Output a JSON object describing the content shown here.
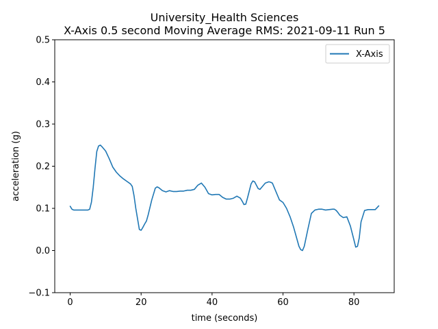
{
  "chart_data": {
    "type": "line",
    "title": "University_Health Sciences",
    "subtitle": "X-Axis 0.5 second Moving Average RMS: 2021-09-11 Run 5",
    "xlabel": "time (seconds)",
    "ylabel": "acceleration (g)",
    "xlim": [
      -4.35,
      91.35
    ],
    "ylim": [
      -0.1,
      0.5
    ],
    "xticks": [
      0,
      20,
      40,
      60,
      80
    ],
    "yticks": [
      -0.1,
      0.0,
      0.1,
      0.2,
      0.3,
      0.4,
      0.5
    ],
    "xtick_labels": [
      "0",
      "20",
      "40",
      "60",
      "80"
    ],
    "ytick_labels": [
      "−0.1",
      "0.0",
      "0.1",
      "0.2",
      "0.3",
      "0.4",
      "0.5"
    ],
    "grid": false,
    "legend": {
      "position": "top-right",
      "entries": [
        "X-Axis"
      ]
    },
    "series": [
      {
        "name": "X-Axis",
        "color": "#1f77b4",
        "x": [
          0,
          0.5,
          1,
          2,
          3,
          4,
          5,
          5.5,
          6,
          6.5,
          7,
          7.5,
          8,
          8.5,
          9,
          10,
          11,
          12,
          13,
          14,
          15,
          16,
          17,
          17.5,
          18,
          18.5,
          19,
          19.5,
          20,
          20.5,
          21,
          21.5,
          22,
          23,
          24,
          24.5,
          25,
          26,
          27,
          28,
          29,
          30,
          31,
          32,
          33,
          34,
          35,
          36,
          37,
          38,
          39,
          40,
          41,
          42,
          43,
          44,
          45,
          46,
          47,
          48,
          48.5,
          49,
          49.5,
          50,
          51,
          51.5,
          52,
          53,
          53.5,
          54,
          55,
          56,
          56.5,
          57,
          58,
          59,
          60,
          61,
          62,
          63,
          64,
          64.5,
          65,
          65.5,
          66,
          67,
          68,
          69,
          70,
          71,
          72,
          73,
          74,
          74.5,
          75,
          75.5,
          76,
          77,
          78,
          79,
          80,
          80.5,
          81,
          81.5,
          82,
          83,
          84,
          85,
          86,
          87
        ],
        "y": [
          0.105,
          0.098,
          0.096,
          0.096,
          0.096,
          0.096,
          0.096,
          0.098,
          0.115,
          0.15,
          0.195,
          0.235,
          0.248,
          0.25,
          0.246,
          0.236,
          0.218,
          0.198,
          0.186,
          0.177,
          0.17,
          0.164,
          0.158,
          0.152,
          0.13,
          0.1,
          0.075,
          0.05,
          0.048,
          0.055,
          0.063,
          0.07,
          0.085,
          0.12,
          0.148,
          0.151,
          0.149,
          0.142,
          0.139,
          0.142,
          0.14,
          0.14,
          0.141,
          0.141,
          0.143,
          0.143,
          0.145,
          0.155,
          0.16,
          0.15,
          0.135,
          0.132,
          0.133,
          0.133,
          0.126,
          0.122,
          0.122,
          0.124,
          0.129,
          0.124,
          0.117,
          0.109,
          0.11,
          0.125,
          0.158,
          0.165,
          0.163,
          0.147,
          0.145,
          0.15,
          0.16,
          0.163,
          0.162,
          0.16,
          0.14,
          0.12,
          0.114,
          0.1,
          0.08,
          0.055,
          0.025,
          0.01,
          0.002,
          0.0,
          0.01,
          0.05,
          0.088,
          0.096,
          0.098,
          0.098,
          0.096,
          0.097,
          0.098,
          0.098,
          0.095,
          0.09,
          0.084,
          0.078,
          0.08,
          0.058,
          0.025,
          0.008,
          0.01,
          0.03,
          0.068,
          0.095,
          0.097,
          0.097,
          0.097,
          0.106
        ]
      }
    ]
  }
}
